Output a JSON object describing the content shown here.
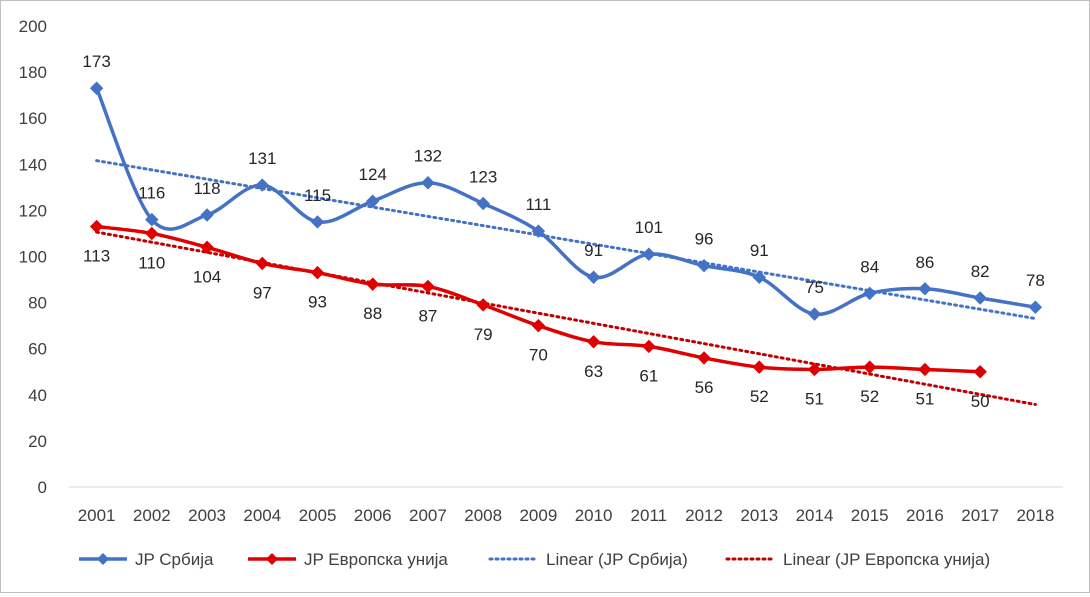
{
  "chart_data": {
    "type": "line",
    "ylim": [
      0,
      200
    ],
    "yticks": [
      0,
      20,
      40,
      60,
      80,
      100,
      120,
      140,
      160,
      180,
      200
    ],
    "x": [
      "2001",
      "2002",
      "2003",
      "2004",
      "2005",
      "2006",
      "2007",
      "2008",
      "2009",
      "2010",
      "2011",
      "2012",
      "2013",
      "2014",
      "2015",
      "2016",
      "2017",
      "2018"
    ],
    "series": [
      {
        "name": "JP Србија",
        "color": "#4472c4",
        "values": [
          173,
          116,
          118,
          131,
          115,
          124,
          132,
          123,
          111,
          91,
          101,
          96,
          91,
          75,
          84,
          86,
          82,
          78
        ]
      },
      {
        "name": "JP Европска унија",
        "color": "#e00000",
        "values": [
          113,
          110,
          104,
          97,
          93,
          88,
          87,
          79,
          70,
          63,
          61,
          56,
          52,
          51,
          52,
          51,
          50,
          null
        ]
      }
    ],
    "trendlines": [
      {
        "name": "Linear (JP Србија)",
        "color": "#4472c4",
        "start": 141.6,
        "end": 73.1
      },
      {
        "name": "Linear (JP Европска унија)",
        "color": "#c00000",
        "start": 110.6,
        "end": 35.8
      }
    ],
    "legend": "bottom",
    "grid": false
  }
}
